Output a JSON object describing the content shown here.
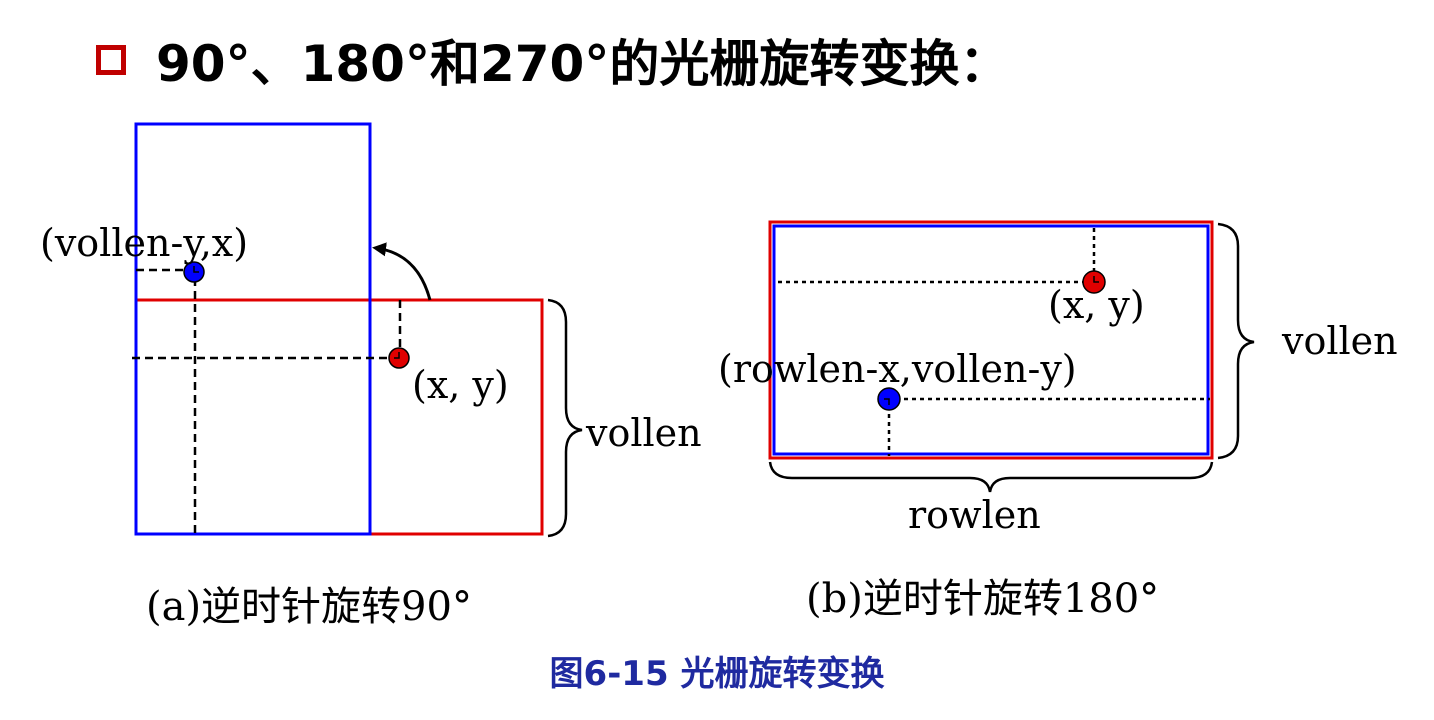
{
  "title": "90°、180°和270°的光栅旋转变换：",
  "colors": {
    "bullet": "#c00000",
    "blue": "#0000ff",
    "red": "#e00000",
    "caption": "#1f2aa0"
  },
  "icons": {
    "bullet": "hollow-square-icon",
    "arrow": "curved-arrow-icon"
  },
  "diagram_a": {
    "label_rotated_point": "(vollen-y,x)",
    "label_point": "(x, y)",
    "label_vollen": "vollen",
    "caption": "(a)逆时针旋转90°"
  },
  "diagram_b": {
    "label_point": "(x, y)",
    "label_rotated_point": "(rowlen-x,vollen-y)",
    "label_vollen": "vollen",
    "label_rowlen": "rowlen",
    "caption": "(b)逆时针旋转180°"
  },
  "figure_caption": "图6-15 光栅旋转变换"
}
